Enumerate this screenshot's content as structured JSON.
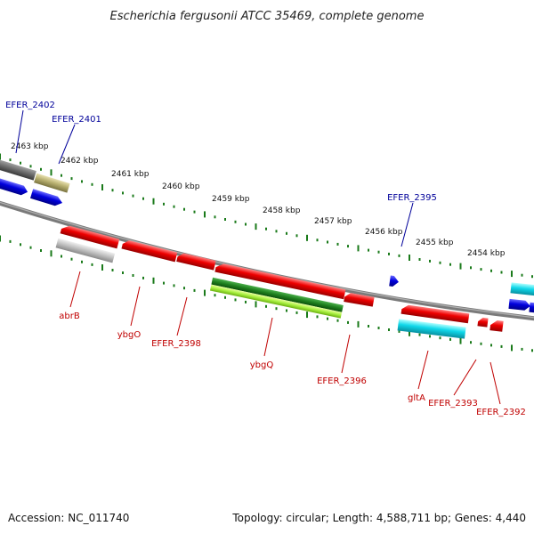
{
  "title": "Escherichia fergusonii ATCC 35469, complete genome",
  "footer": {
    "accession": "Accession: NC_011740",
    "summary": "Topology: circular; Length: 4,588,711 bp; Genes: 4,440"
  },
  "ticks": [
    "2463 kbp",
    "2462 kbp",
    "2461 kbp",
    "2460 kbp",
    "2459 kbp",
    "2458 kbp",
    "2457 kbp",
    "2456 kbp",
    "2455 kbp",
    "2454 kbp"
  ],
  "colors": {
    "backbone": "#7a7a7a",
    "tick": "#1a7a1a",
    "label_blue": "#00009a",
    "label_red": "#c00000"
  },
  "genes": [
    {
      "name": "EFER_2402",
      "color": "#0000c8",
      "label_color": "blue"
    },
    {
      "name": "EFER_2401",
      "color": "#b8b070",
      "label_color": "blue"
    },
    {
      "name": "abrB",
      "color": "#c8c8c8",
      "label_color": "red"
    },
    {
      "name": "ybgO",
      "color": "#e00000",
      "label_color": "red"
    },
    {
      "name": "EFER_2398",
      "color": "#e00000",
      "label_color": "red"
    },
    {
      "name": "ybgQ",
      "color": "#2a8a2a",
      "label_color": "red"
    },
    {
      "name": "EFER_2396",
      "color": "#e00000",
      "label_color": "red"
    },
    {
      "name": "EFER_2395",
      "color": "#0000c8",
      "label_color": "blue"
    },
    {
      "name": "gltA",
      "color": "#20d8e8",
      "label_color": "red"
    },
    {
      "name": "EFER_2393",
      "color": "#e00000",
      "label_color": "red"
    },
    {
      "name": "EFER_2392",
      "color": "#e00000",
      "label_color": "red"
    }
  ]
}
